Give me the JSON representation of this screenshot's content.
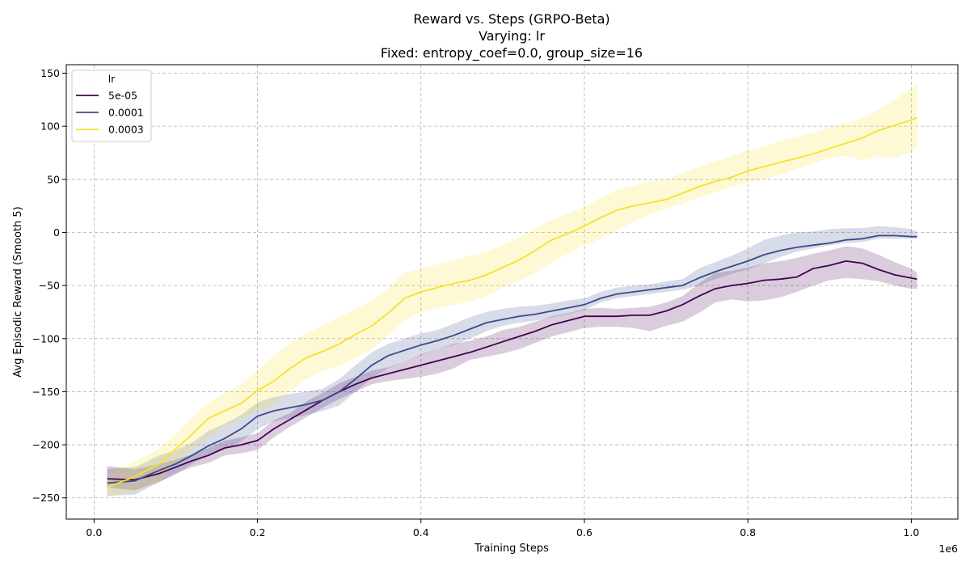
{
  "chart_data": {
    "type": "line",
    "title_lines": [
      "Reward vs. Steps (GRPO-Beta)",
      "Varying: lr",
      "Fixed: entropy_coef=0.0, group_size=16"
    ],
    "xlabel": "Training Steps",
    "ylabel": "Avg Episodic Reward (Smooth 5)",
    "x_offset_label": "1e6",
    "xlim": [
      -0.034,
      1.057
    ],
    "ylim": [
      -270,
      158
    ],
    "xticks": [
      0.0,
      0.2,
      0.4,
      0.6,
      0.8,
      1.0
    ],
    "xtick_labels": [
      "0.0",
      "0.2",
      "0.4",
      "0.6",
      "0.8",
      "1.0"
    ],
    "yticks": [
      150,
      100,
      50,
      0,
      -50,
      -100,
      -150,
      -200,
      -250
    ],
    "ytick_labels": [
      "150",
      "100",
      "50",
      "0",
      "−50",
      "−100",
      "−150",
      "−200",
      "−250"
    ],
    "grid": true,
    "legend": {
      "title": "lr",
      "placement": "upper-left"
    },
    "series": [
      {
        "name": "5e-05",
        "color": "#440154",
        "band_opacity": 0.2,
        "x": [
          0.016,
          0.05,
          0.08,
          0.1,
          0.12,
          0.14,
          0.16,
          0.18,
          0.2,
          0.22,
          0.24,
          0.26,
          0.28,
          0.3,
          0.32,
          0.34,
          0.36,
          0.38,
          0.4,
          0.42,
          0.44,
          0.46,
          0.48,
          0.5,
          0.52,
          0.54,
          0.56,
          0.58,
          0.6,
          0.62,
          0.64,
          0.66,
          0.68,
          0.7,
          0.72,
          0.74,
          0.76,
          0.78,
          0.8,
          0.82,
          0.84,
          0.86,
          0.88,
          0.9,
          0.92,
          0.94,
          0.96,
          0.98,
          1.0,
          1.007
        ],
        "mean": [
          -232,
          -233,
          -227,
          -221,
          -215,
          -210,
          -203,
          -200,
          -196,
          -185,
          -176,
          -167,
          -158,
          -150,
          -143,
          -137,
          -133,
          -129,
          -125,
          -121,
          -117,
          -113,
          -108,
          -103,
          -98,
          -93,
          -87,
          -83,
          -79,
          -79,
          -79,
          -78,
          -78,
          -74,
          -68,
          -60,
          -53,
          -50,
          -48,
          -45,
          -44,
          -42,
          -34,
          -31,
          -27,
          -29,
          -35,
          -40,
          -43,
          -44
        ],
        "lower": [
          -240,
          -243,
          -235,
          -227,
          -221,
          -217,
          -210,
          -208,
          -205,
          -193,
          -183,
          -174,
          -165,
          -157,
          -150,
          -143,
          -140,
          -138,
          -136,
          -133,
          -128,
          -120,
          -117,
          -114,
          -110,
          -104,
          -98,
          -94,
          -90,
          -89,
          -89,
          -90,
          -93,
          -88,
          -84,
          -76,
          -66,
          -63,
          -65,
          -64,
          -61,
          -56,
          -50,
          -45,
          -43,
          -44,
          -46,
          -50,
          -53,
          -53
        ],
        "upper": [
          -220,
          -223,
          -218,
          -214,
          -209,
          -203,
          -196,
          -193,
          -189,
          -177,
          -170,
          -159,
          -151,
          -142,
          -136,
          -130,
          -127,
          -122,
          -115,
          -110,
          -105,
          -102,
          -98,
          -92,
          -89,
          -84,
          -79,
          -76,
          -72,
          -71,
          -72,
          -71,
          -70,
          -66,
          -60,
          -48,
          -38,
          -36,
          -33,
          -29,
          -27,
          -24,
          -20,
          -17,
          -13,
          -15,
          -21,
          -28,
          -34,
          -38
        ]
      },
      {
        "name": "0.0001",
        "color": "#3b4b8a",
        "band_opacity": 0.2,
        "x": [
          0.016,
          0.05,
          0.08,
          0.1,
          0.12,
          0.14,
          0.16,
          0.18,
          0.2,
          0.22,
          0.24,
          0.26,
          0.28,
          0.3,
          0.32,
          0.34,
          0.36,
          0.38,
          0.4,
          0.42,
          0.44,
          0.46,
          0.48,
          0.5,
          0.52,
          0.54,
          0.56,
          0.58,
          0.6,
          0.62,
          0.64,
          0.66,
          0.68,
          0.7,
          0.72,
          0.74,
          0.76,
          0.78,
          0.8,
          0.82,
          0.84,
          0.86,
          0.88,
          0.9,
          0.92,
          0.94,
          0.96,
          0.98,
          1.0,
          1.007
        ],
        "mean": [
          -236,
          -234,
          -224,
          -218,
          -210,
          -201,
          -194,
          -185,
          -173,
          -168,
          -165,
          -162,
          -158,
          -150,
          -138,
          -125,
          -116,
          -111,
          -106,
          -102,
          -97,
          -91,
          -85,
          -82,
          -79,
          -77,
          -74,
          -71,
          -68,
          -62,
          -58,
          -56,
          -54,
          -52,
          -50,
          -43,
          -37,
          -32,
          -27,
          -21,
          -17,
          -14,
          -12,
          -10,
          -7,
          -6,
          -3,
          -3,
          -4,
          -4
        ],
        "lower": [
          -248,
          -247,
          -235,
          -228,
          -218,
          -210,
          -204,
          -197,
          -185,
          -178,
          -175,
          -172,
          -168,
          -163,
          -150,
          -137,
          -128,
          -122,
          -116,
          -110,
          -106,
          -100,
          -93,
          -88,
          -85,
          -83,
          -80,
          -77,
          -73,
          -66,
          -62,
          -60,
          -58,
          -56,
          -54,
          -50,
          -44,
          -39,
          -35,
          -29,
          -23,
          -18,
          -15,
          -12,
          -10,
          -9,
          -6,
          -6,
          -6,
          -6
        ],
        "upper": [
          -223,
          -221,
          -210,
          -205,
          -198,
          -187,
          -180,
          -172,
          -160,
          -155,
          -152,
          -150,
          -147,
          -138,
          -125,
          -113,
          -105,
          -100,
          -95,
          -92,
          -86,
          -80,
          -75,
          -72,
          -70,
          -69,
          -67,
          -64,
          -62,
          -56,
          -52,
          -50,
          -49,
          -46,
          -44,
          -34,
          -28,
          -22,
          -15,
          -7,
          -3,
          0,
          1,
          3,
          4,
          4,
          6,
          5,
          3,
          1
        ]
      },
      {
        "name": "0.0003",
        "color": "#f5e22b",
        "band_opacity": 0.2,
        "x": [
          0.016,
          0.05,
          0.08,
          0.1,
          0.12,
          0.14,
          0.16,
          0.18,
          0.2,
          0.22,
          0.24,
          0.26,
          0.28,
          0.3,
          0.32,
          0.34,
          0.36,
          0.38,
          0.4,
          0.42,
          0.44,
          0.46,
          0.48,
          0.5,
          0.52,
          0.54,
          0.56,
          0.58,
          0.6,
          0.62,
          0.64,
          0.66,
          0.68,
          0.7,
          0.72,
          0.74,
          0.76,
          0.78,
          0.8,
          0.82,
          0.84,
          0.86,
          0.88,
          0.9,
          0.92,
          0.94,
          0.96,
          0.98,
          1.0,
          1.007
        ],
        "mean": [
          -240,
          -230,
          -218,
          -204,
          -190,
          -175,
          -168,
          -161,
          -149,
          -140,
          -128,
          -118,
          -112,
          -105,
          -96,
          -88,
          -76,
          -62,
          -56,
          -52,
          -48,
          -45,
          -40,
          -33,
          -26,
          -17,
          -7,
          -1,
          6,
          14,
          21,
          25,
          28,
          31,
          37,
          43,
          48,
          52,
          58,
          62,
          66,
          70,
          74,
          79,
          84,
          89,
          96,
          101,
          106,
          108
        ],
        "lower": [
          -250,
          -244,
          -235,
          -218,
          -205,
          -193,
          -182,
          -176,
          -168,
          -162,
          -150,
          -138,
          -130,
          -126,
          -118,
          -110,
          -97,
          -83,
          -75,
          -71,
          -68,
          -65,
          -60,
          -52,
          -46,
          -38,
          -28,
          -20,
          -12,
          -6,
          2,
          10,
          17,
          22,
          27,
          33,
          38,
          43,
          47,
          50,
          54,
          60,
          65,
          70,
          72,
          68,
          72,
          70,
          76,
          80
        ],
        "upper": [
          -228,
          -216,
          -203,
          -190,
          -174,
          -160,
          -151,
          -143,
          -130,
          -116,
          -104,
          -95,
          -87,
          -80,
          -72,
          -64,
          -52,
          -38,
          -34,
          -30,
          -26,
          -22,
          -18,
          -12,
          -5,
          4,
          12,
          18,
          24,
          33,
          40,
          44,
          48,
          50,
          56,
          62,
          67,
          72,
          77,
          81,
          86,
          90,
          94,
          99,
          103,
          108,
          116,
          125,
          136,
          140
        ]
      }
    ]
  }
}
